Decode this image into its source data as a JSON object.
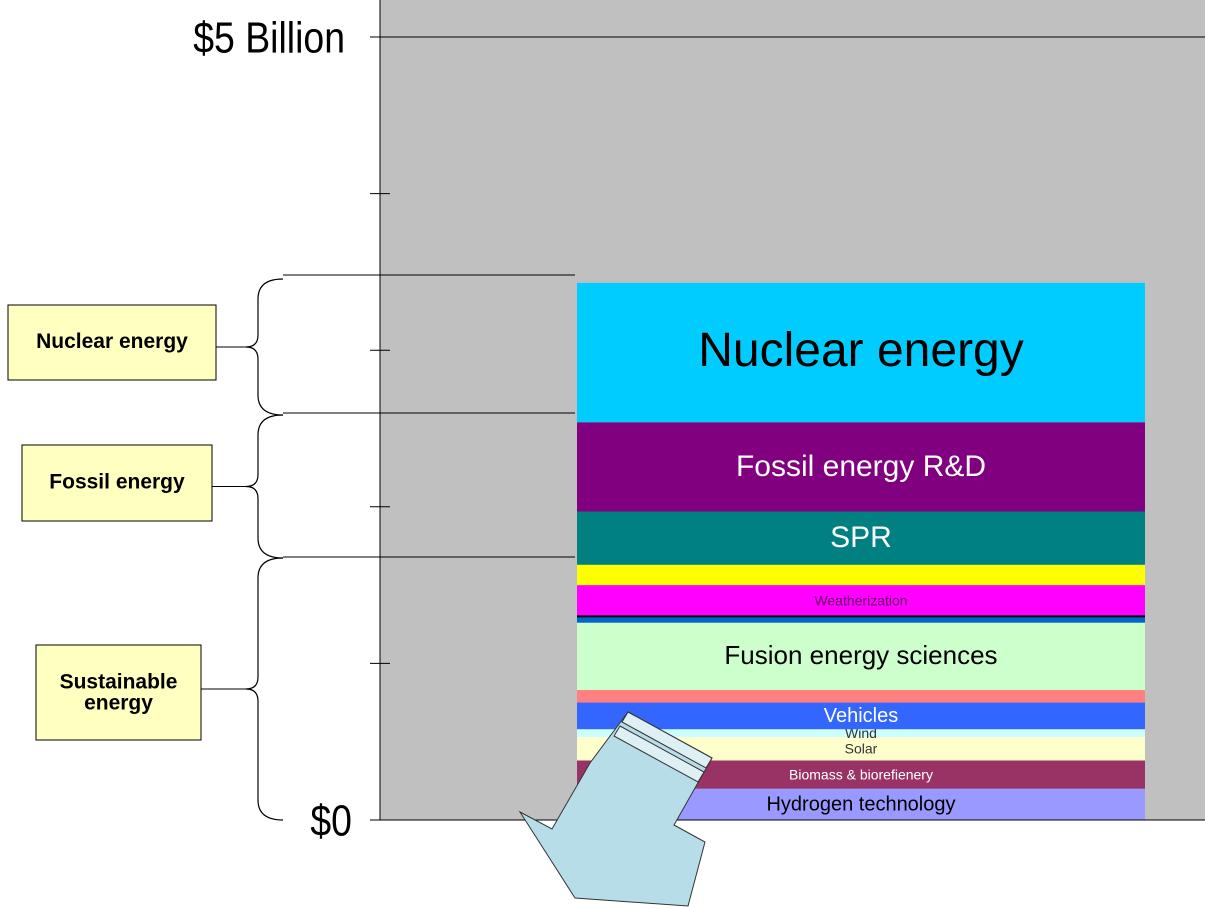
{
  "chart_data": {
    "type": "stacked_bar",
    "ylim": [
      0,
      5
    ],
    "yticks": [
      {
        "value": 0,
        "label": "$0"
      },
      {
        "value": 1,
        "label": null
      },
      {
        "value": 2,
        "label": null
      },
      {
        "value": 3,
        "label": null
      },
      {
        "value": 4,
        "label": null
      },
      {
        "value": 5,
        "label": "$5 Billion"
      }
    ],
    "segments": [
      {
        "name": "Hydrogen technology",
        "color": "#9999ff",
        "label_color": "#000000",
        "value": 0.2
      },
      {
        "name": "Biomass & biorefienery",
        "color": "#993366",
        "label_color": "#ffffff",
        "value": 0.18
      },
      {
        "name": "Solar",
        "color": "#ffffcc",
        "label_color": "#333333",
        "value": 0.15
      },
      {
        "name": "Wind",
        "color": "#ccffff",
        "label_color": "#333333",
        "value": 0.05
      },
      {
        "name": "Vehicles",
        "color": "#3366ff",
        "label_color": "#ffffff",
        "value": 0.17
      },
      {
        "name": null,
        "color": "#ff8080",
        "label_color": "#000000",
        "value": 0.08
      },
      {
        "name": "Fusion energy sciences",
        "color": "#ccffcc",
        "label_color": "#000000",
        "value": 0.43
      },
      {
        "name": null,
        "color": "#0066cc",
        "label_color": "#000000",
        "value": 0.04
      },
      {
        "name": "Weatherization",
        "color": "#ff00ff",
        "label_color": "#660066",
        "value": 0.2
      },
      {
        "name": null,
        "color": "#ffff00",
        "label_color": "#000000",
        "value": 0.13
      },
      {
        "name": "SPR",
        "color": "#008080",
        "label_color": "#ffffff",
        "value": 0.34
      },
      {
        "name": "Fossil energy R&D",
        "color": "#800080",
        "label_color": "#ffffff",
        "value": 0.57
      },
      {
        "name": "Nuclear energy",
        "color": "#00ccff",
        "label_color": "#000000",
        "value": 0.89
      }
    ],
    "groups": [
      {
        "label": "Nuclear energy"
      },
      {
        "label": "Fossil energy"
      },
      {
        "label": "Sustainable energy"
      }
    ]
  }
}
